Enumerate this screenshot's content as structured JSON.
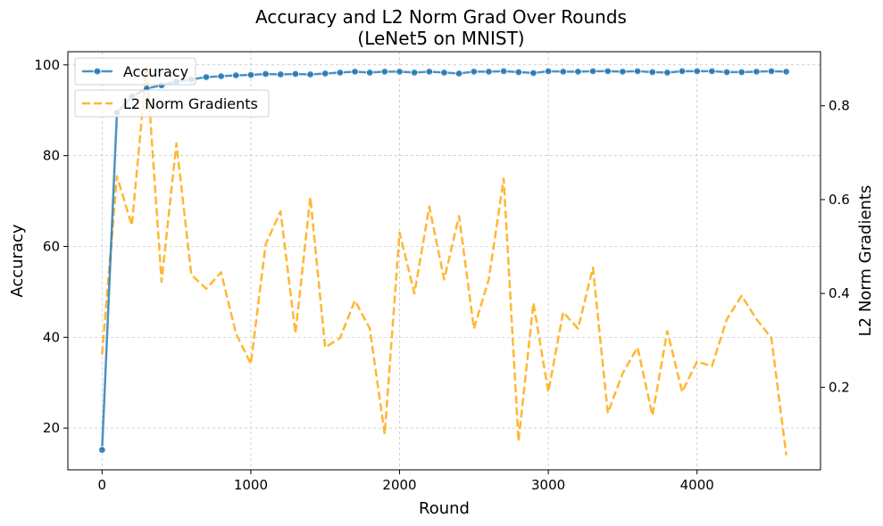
{
  "chart_data": {
    "type": "line",
    "title_line1": "Accuracy and L2 Norm Grad Over Rounds",
    "title_line2": "(LeNet5 on MNIST)",
    "xlabel": "Round",
    "ylabel_left": "Accuracy",
    "ylabel_right": "L2 Norm Gradients",
    "xlim": [
      -230,
      4830
    ],
    "ylim_left": [
      10.8,
      102.9
    ],
    "ylim_right": [
      0.0241,
      0.9152
    ],
    "x_ticks": [
      0,
      1000,
      2000,
      3000,
      4000
    ],
    "y_ticks_left": [
      20,
      40,
      60,
      80,
      100
    ],
    "y_ticks_right": [
      0.2,
      0.4,
      0.6,
      0.8
    ],
    "grid": true,
    "legend": "top-left",
    "x": [
      0,
      100,
      200,
      300,
      400,
      500,
      600,
      700,
      800,
      900,
      1000,
      1100,
      1200,
      1300,
      1400,
      1500,
      1600,
      1700,
      1800,
      1900,
      2000,
      2100,
      2200,
      2300,
      2400,
      2500,
      2600,
      2700,
      2800,
      2900,
      3000,
      3100,
      3200,
      3300,
      3400,
      3500,
      3600,
      3700,
      3800,
      3900,
      4000,
      4100,
      4200,
      4300,
      4400,
      4500,
      4600
    ],
    "series": [
      {
        "name": "Accuracy",
        "axis": "left",
        "color": "#1f77b4",
        "style": "solid-markers",
        "values": [
          15.2,
          89.5,
          93.0,
          94.8,
          95.5,
          96.3,
          96.8,
          97.3,
          97.5,
          97.7,
          97.8,
          98.0,
          97.9,
          98.0,
          97.9,
          98.1,
          98.3,
          98.5,
          98.3,
          98.5,
          98.5,
          98.3,
          98.5,
          98.3,
          98.1,
          98.5,
          98.5,
          98.6,
          98.4,
          98.2,
          98.6,
          98.5,
          98.5,
          98.6,
          98.6,
          98.5,
          98.6,
          98.4,
          98.3,
          98.6,
          98.6,
          98.6,
          98.4,
          98.4,
          98.5,
          98.6,
          98.5
        ]
      },
      {
        "name": "L2 Norm Gradients",
        "axis": "right",
        "color": "#ffa500",
        "style": "dashed",
        "values": [
          0.27,
          0.65,
          0.545,
          0.885,
          0.425,
          0.72,
          0.44,
          0.41,
          0.445,
          0.315,
          0.25,
          0.505,
          0.575,
          0.315,
          0.605,
          0.285,
          0.305,
          0.385,
          0.325,
          0.1,
          0.53,
          0.4,
          0.585,
          0.43,
          0.565,
          0.325,
          0.43,
          0.645,
          0.085,
          0.38,
          0.19,
          0.36,
          0.325,
          0.455,
          0.145,
          0.23,
          0.285,
          0.14,
          0.32,
          0.19,
          0.255,
          0.245,
          0.345,
          0.395,
          0.345,
          0.305,
          0.055
        ]
      }
    ]
  }
}
